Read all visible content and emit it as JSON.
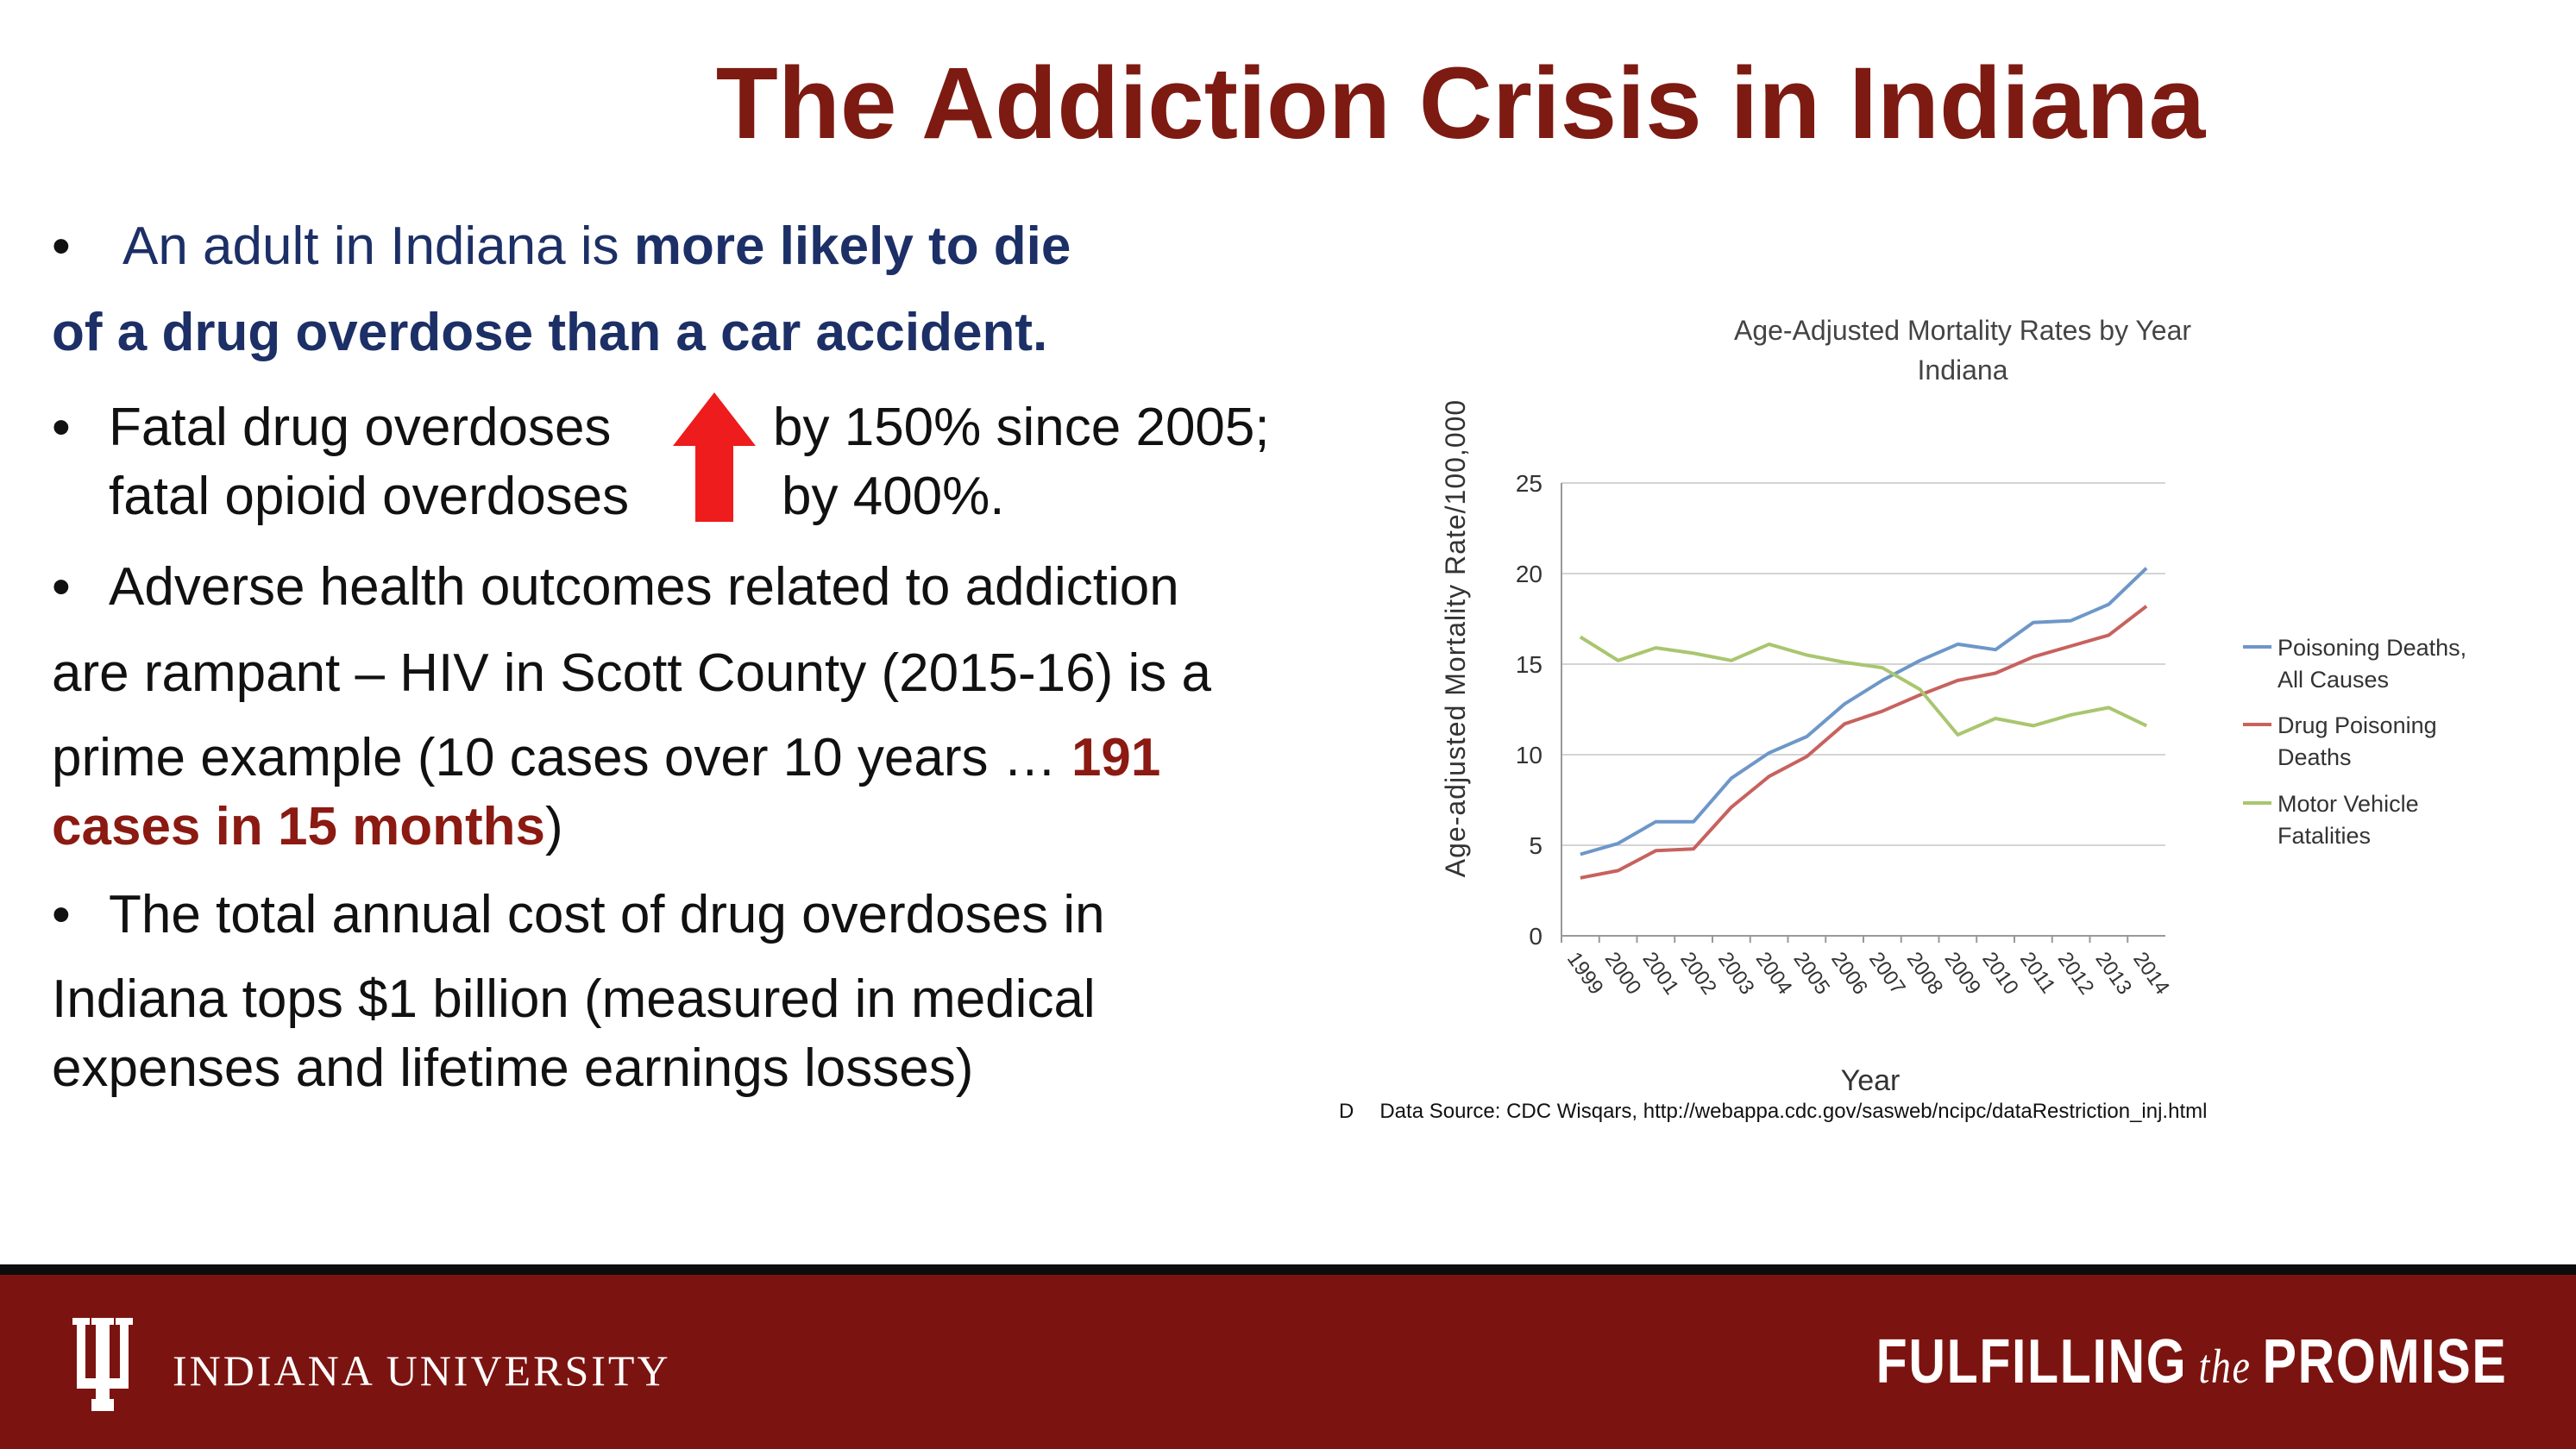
{
  "slide": {
    "title": "The Addiction Crisis in Indiana"
  },
  "bullets": {
    "b1_pre": "An adult in Indiana is ",
    "b1_bold": "more likely to die",
    "b1_cont": "of a drug overdose than a car accident.",
    "b2_l1a": "Fatal drug overdoses",
    "b2_l1b": "by 150% since 2005;",
    "b2_l2a": "fatal opioid overdoses",
    "b2_l2b": "by 400%.",
    "b3_l1": "Adverse health outcomes related to addiction",
    "b3_l2": "are rampant – HIV in Scott County (2015-16) is a",
    "b3_l3": "prime example (10 cases over 10 years … ",
    "b3_l3_red": "191",
    "b3_l4_red": "cases in 15 months",
    "b3_l4_end": ")",
    "b4_l1": "The total annual cost of drug overdoses in",
    "b4_l2": "Indiana tops $1 billion (measured in medical",
    "b4_l3": "expenses and lifetime earnings losses)"
  },
  "chart_data": {
    "type": "line",
    "title": "Age-Adjusted  Mortality Rates by Year",
    "subtitle": "Indiana",
    "xlabel": "Year",
    "ylabel": "Age-adjusted Mortality Rate/100,000",
    "ylim": [
      0,
      25
    ],
    "yticks": [
      "0",
      "5",
      "10",
      "15",
      "20",
      "25"
    ],
    "categories": [
      "1999",
      "2000",
      "2001",
      "2002",
      "2003",
      "2004",
      "2005",
      "2006",
      "2007",
      "2008",
      "2009",
      "2010",
      "2011",
      "2012",
      "2013",
      "2014"
    ],
    "legend_position": "right",
    "series": [
      {
        "name": "Poisoning Deaths, All Causes",
        "legend_lines": [
          "Poisoning Deaths,",
          "All Causes"
        ],
        "color": "#6d97c8",
        "values": [
          4.5,
          5.1,
          6.3,
          6.3,
          8.7,
          10.1,
          11.0,
          12.8,
          14.1,
          15.2,
          16.1,
          15.8,
          17.3,
          17.4,
          18.3,
          20.3
        ]
      },
      {
        "name": "Drug Poisoning Deaths",
        "legend_lines": [
          "Drug Poisoning",
          "Deaths"
        ],
        "color": "#c7625f",
        "values": [
          3.2,
          3.6,
          4.7,
          4.8,
          7.1,
          8.8,
          9.9,
          11.7,
          12.4,
          13.3,
          14.1,
          14.5,
          15.4,
          16.0,
          16.6,
          18.2
        ]
      },
      {
        "name": "Motor Vehicle Fatalities",
        "legend_lines": [
          "Motor Vehicle",
          "Fatalities"
        ],
        "color": "#a9c66f",
        "values": [
          16.5,
          15.2,
          15.9,
          15.6,
          15.2,
          16.1,
          15.5,
          15.1,
          14.8,
          13.6,
          11.1,
          12.0,
          11.6,
          12.2,
          12.6,
          11.6
        ]
      }
    ]
  },
  "source": {
    "marker": "D",
    "text": "Data Source:  CDC Wisqars, http://webappa.cdc.gov/sasweb/ncipc/dataRestriction_inj.html"
  },
  "footer": {
    "university": "INDIANA UNIVERSITY",
    "promise_a": "FULFILLING",
    "promise_the": "the",
    "promise_b": "PROMISE",
    "bar_color": "#7b1410"
  },
  "colors": {
    "title": "#7d1a12",
    "navy": "#1c2f66",
    "highlight_red": "#8b1a12",
    "arrow": "#ee1c1c"
  }
}
